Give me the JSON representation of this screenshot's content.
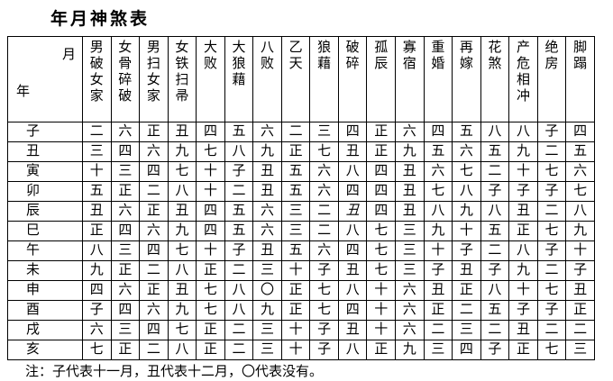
{
  "title": "年月神煞表",
  "corner": {
    "month": "月",
    "year": "年"
  },
  "columns": [
    "男破女家",
    "女骨碎破",
    "男扫女家",
    "女铁扫帚",
    "大败",
    "大狼藉",
    "八败",
    "乙天",
    "狼藉",
    "破碎",
    "孤辰",
    "寡宿",
    "重婚",
    "再嫁",
    "花煞",
    "产危相冲",
    "绝房",
    "脚蹋"
  ],
  "rows": [
    {
      "label": "子",
      "values": [
        "二",
        "六",
        "正",
        "丑",
        "四",
        "五",
        "六",
        "二",
        "三",
        "四",
        "正",
        "六",
        "四",
        "五",
        "八",
        "八",
        "子",
        "四"
      ]
    },
    {
      "label": "丑",
      "values": [
        "三",
        "四",
        "六",
        "九",
        "七",
        "八",
        "九",
        "正",
        "七",
        "丑",
        "正",
        "九",
        "五",
        "六",
        "五",
        "九",
        "二",
        "五"
      ]
    },
    {
      "label": "寅",
      "values": [
        "十",
        "三",
        "四",
        "七",
        "十",
        "子",
        "丑",
        "五",
        "六",
        "八",
        "四",
        "丑",
        "六",
        "七",
        "二",
        "十",
        "七",
        "六"
      ]
    },
    {
      "label": "卯",
      "values": [
        "五",
        "正",
        "二",
        "八",
        "十",
        "二",
        "丑",
        "五",
        "六",
        "四",
        "四",
        "丑",
        "七",
        "八",
        "子",
        "子",
        "子",
        "七"
      ]
    },
    {
      "label": "辰",
      "values": [
        "丑",
        "六",
        "正",
        "丑",
        "四",
        "五",
        "六",
        "三",
        "二",
        "丑",
        "四",
        "丑",
        "八",
        "九",
        "八",
        "丑",
        "二",
        "八"
      ]
    },
    {
      "label": "巳",
      "values": [
        "正",
        "四",
        "六",
        "九",
        "四",
        "五",
        "六",
        "三",
        "二",
        "八",
        "七",
        "三",
        "九",
        "十",
        "五",
        "正",
        "七",
        "九"
      ]
    },
    {
      "label": "午",
      "values": [
        "八",
        "三",
        "四",
        "七",
        "十",
        "子",
        "丑",
        "五",
        "六",
        "四",
        "七",
        "三",
        "十",
        "子",
        "二",
        "八",
        "子",
        "十"
      ]
    },
    {
      "label": "未",
      "values": [
        "九",
        "正",
        "二",
        "八",
        "正",
        "二",
        "三",
        "十",
        "子",
        "丑",
        "七",
        "三",
        "子",
        "丑",
        "子",
        "九",
        "二",
        "子"
      ]
    },
    {
      "label": "申",
      "values": [
        "四",
        "六",
        "正",
        "丑",
        "七",
        "八",
        "〇",
        "正",
        "七",
        "八",
        "十",
        "六",
        "丑",
        "正",
        "八",
        "十",
        "七",
        "丑"
      ]
    },
    {
      "label": "酉",
      "values": [
        "子",
        "四",
        "六",
        "九",
        "七",
        "八",
        "九",
        "正",
        "七",
        "四",
        "十",
        "六",
        "正",
        "二",
        "五",
        "子",
        "子",
        "正"
      ]
    },
    {
      "label": "戌",
      "values": [
        "六",
        "三",
        "四",
        "七",
        "正",
        "二",
        "三",
        "十",
        "子",
        "丑",
        "十",
        "六",
        "二",
        "三",
        "二",
        "丑",
        "二",
        "二"
      ]
    },
    {
      "label": "亥",
      "values": [
        "七",
        "正",
        "二",
        "八",
        "正",
        "二",
        "三",
        "十",
        "子",
        "八",
        "正",
        "九",
        "三",
        "四",
        "子",
        "正",
        "七",
        "三"
      ]
    }
  ],
  "italic_cells": [
    {
      "row": 4,
      "col": 9
    }
  ],
  "note": "注：子代表十一月，丑代表十二月，〇代表没有。"
}
